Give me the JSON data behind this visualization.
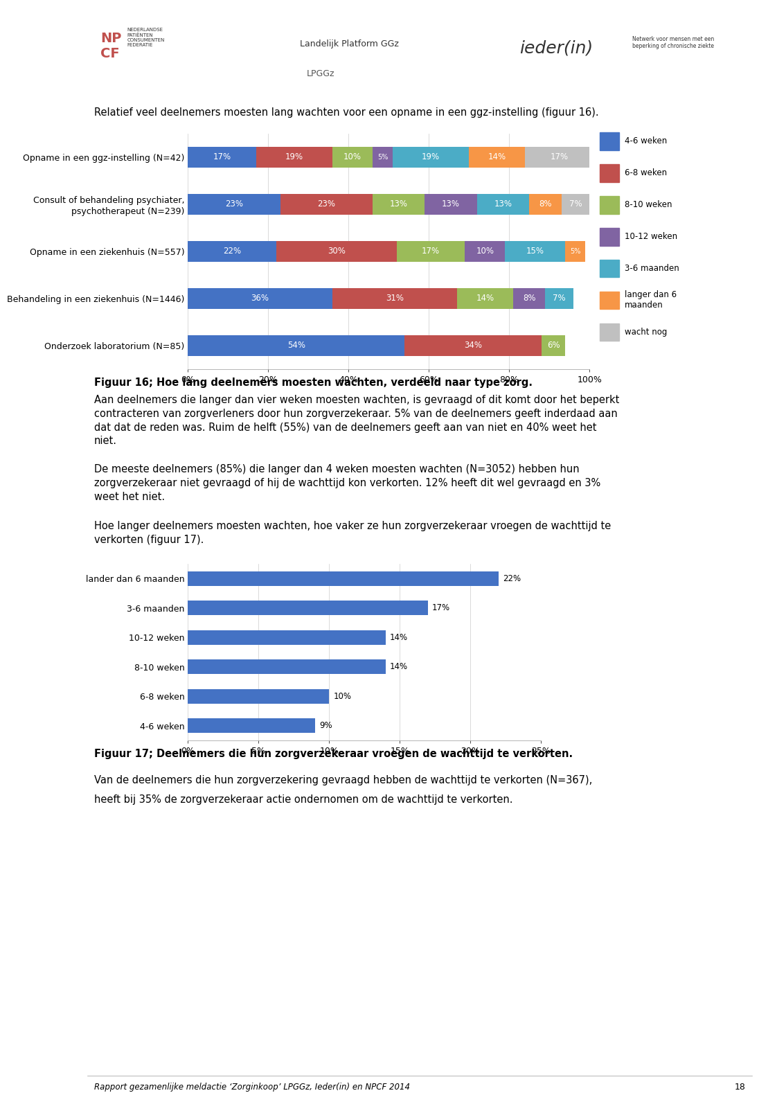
{
  "header_logos_placeholder": true,
  "intro_text": "Relatief veel deelnemers moesten lang wachten voor een opname in een ggz-instelling (figuur 16).",
  "chart1": {
    "categories": [
      "Opname in een ggz-instelling (N=42)",
      "Consult of behandeling psychiater,\npsychotherapeut (N=239)",
      "Opname in een ziekenhuis (N=557)",
      "Behandeling in een ziekenhuis (N=1446)",
      "Onderzoek laboratorium (N=85)"
    ],
    "series_labels": [
      "4-6 weken",
      "6-8 weken",
      "8-10 weken",
      "10-12 weken",
      "3-6 maanden",
      "langer dan 6\nmaanden",
      "wacht nog"
    ],
    "colors": [
      "#4472C4",
      "#C0504D",
      "#9BBB59",
      "#8064A2",
      "#4BACC6",
      "#F79646",
      "#C0C0C0"
    ],
    "data": [
      [
        17,
        19,
        10,
        5,
        19,
        14,
        17
      ],
      [
        23,
        23,
        13,
        13,
        13,
        8,
        7
      ],
      [
        22,
        30,
        17,
        10,
        15,
        5,
        0
      ],
      [
        36,
        31,
        14,
        8,
        7,
        0,
        0
      ],
      [
        54,
        34,
        6,
        0,
        0,
        0,
        0
      ]
    ],
    "xlim": [
      0,
      100
    ],
    "xticks": [
      0,
      20,
      40,
      60,
      80,
      100
    ],
    "xticklabels": [
      "0%",
      "20%",
      "40%",
      "60%",
      "80%",
      "100%"
    ],
    "figcaption": "Figuur 16; Hoe lang deelnemers moesten wachten, verdeeld naar type zorg."
  },
  "body_text_1": "Aan deelnemers die langer dan vier weken moesten wachten, is gevraagd of dit komt door het beperkt\ncontracteren van zorgverleners door hun zorgverzekeraar. 5% van de deelnemers geeft inderdaad aan\ndat dat de reden was. Ruim de helft (55%) van de deelnemers geeft aan van niet en 40% weet het\nniet.",
  "body_text_2": "De meeste deelnemers (85%) die langer dan 4 weken moesten wachten (N=3052) hebben hun\nzorgverzekeraar niet gevraagd of hij de wachttijd kon verkorten. 12% heeft dit wel gevraagd en 3%\nweet het niet.",
  "body_text_3": "Hoe langer deelnemers moesten wachten, hoe vaker ze hun zorgverzekeraar vroegen de wachttijd te\nverkorten (figuur 17).",
  "chart2": {
    "categories": [
      "lander dan 6 maanden",
      "3-6 maanden",
      "10-12 weken",
      "8-10 weken",
      "6-8 weken",
      "4-6 weken"
    ],
    "values": [
      22,
      17,
      14,
      14,
      10,
      9
    ],
    "color": "#4472C4",
    "xlim": [
      0,
      25
    ],
    "xticks": [
      0,
      5,
      10,
      15,
      20,
      25
    ],
    "xticklabels": [
      "0%",
      "5%",
      "10%",
      "15%",
      "20%",
      "25%"
    ],
    "figcaption": "Figuur 17; Deelnemers die hun zorgverzekeraar vroegen de wachttijd te verkorten."
  },
  "footer_text_1": "Van de deelnemers die hun zorgverzekering gevraagd hebben de wachttijd te verkorten (N=367),",
  "footer_text_2": "heeft bij 35% de zorgverzekeraar actie ondernomen om de wachttijd te verkorten.",
  "footer_report": "Rapport gezamenlijke meldactie ‘Zorginkoop’ LPGGz, Ieder(in) en NPCF 2014",
  "footer_page": "18",
  "bg_color": "#FFFFFF",
  "text_color": "#000000",
  "font_size_body": 10.5,
  "font_size_caption": 10.5,
  "font_size_tick": 9,
  "font_size_bar_label": 8.5
}
